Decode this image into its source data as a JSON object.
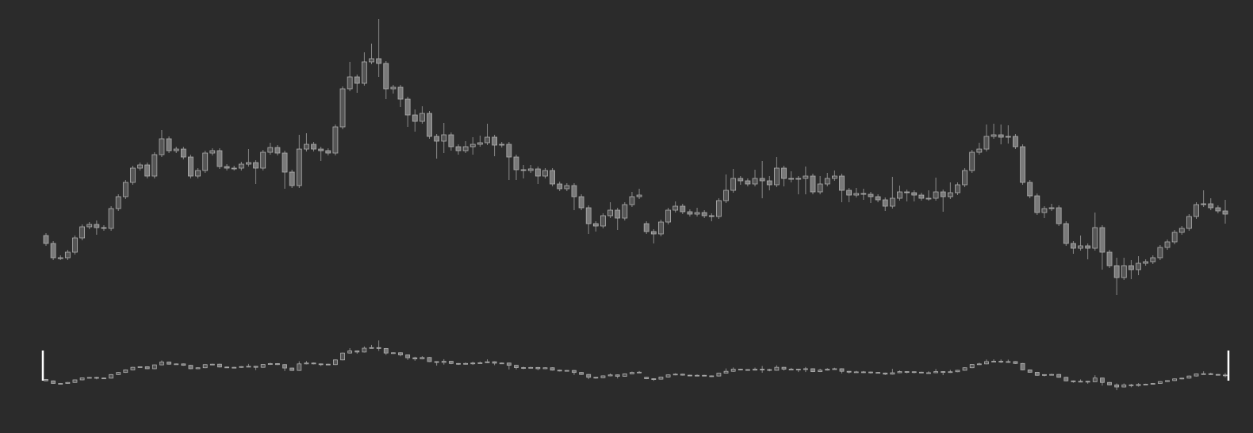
{
  "chart_data": {
    "type": "candlestick",
    "ylim": [
      0,
      400
    ],
    "up_color": "#555555",
    "down_color": "#7a7a7a",
    "wick_color": "#8a8a8a",
    "border_color": "#b0b0b0",
    "open": [
      103,
      93,
      75,
      75,
      82,
      100,
      114,
      117,
      113,
      112,
      137,
      152,
      170,
      188,
      192,
      178,
      205,
      225,
      210,
      212,
      202,
      178,
      185,
      207,
      210,
      190,
      188,
      188,
      193,
      195,
      188,
      208,
      214,
      207,
      183,
      166,
      212,
      218,
      212,
      210,
      207,
      240,
      288,
      303,
      295,
      322,
      326,
      320,
      288,
      290,
      275,
      255,
      247,
      257,
      228,
      222,
      230,
      215,
      210,
      215,
      218,
      220,
      227,
      217,
      218,
      202,
      186,
      185,
      187,
      178,
      185,
      168,
      162,
      166,
      152,
      138,
      118,
      115,
      128,
      135,
      125,
      142,
      152,
      118,
      108,
      105,
      120,
      135,
      140,
      133,
      130,
      132,
      128,
      127,
      147,
      160,
      175,
      172,
      168,
      175,
      172,
      167,
      188,
      175,
      175,
      175,
      178,
      158,
      168,
      175,
      178,
      160,
      154,
      156,
      155,
      152,
      148,
      140,
      150,
      158,
      157,
      154,
      150,
      150,
      158,
      152,
      157,
      167,
      185,
      208,
      212,
      228,
      230,
      227,
      228,
      215,
      170,
      153,
      132,
      137,
      138,
      118,
      93,
      87,
      90,
      87,
      113,
      82,
      65,
      50,
      65,
      60,
      68,
      70,
      75,
      88,
      95,
      107,
      112,
      127,
      142,
      143,
      138,
      134
    ],
    "high": [
      106,
      96,
      78,
      85,
      103,
      117,
      120,
      122,
      116,
      140,
      155,
      173,
      191,
      195,
      195,
      208,
      236,
      228,
      215,
      215,
      205,
      188,
      210,
      213,
      213,
      193,
      191,
      196,
      212,
      198,
      211,
      220,
      217,
      210,
      186,
      230,
      232,
      221,
      215,
      213,
      243,
      291,
      322,
      306,
      334,
      345,
      376,
      323,
      293,
      293,
      278,
      262,
      266,
      260,
      231,
      245,
      233,
      218,
      222,
      227,
      229,
      244,
      230,
      221,
      221,
      205,
      192,
      192,
      190,
      188,
      188,
      171,
      169,
      169,
      155,
      141,
      121,
      131,
      145,
      138,
      145,
      158,
      162,
      121,
      111,
      123,
      138,
      146,
      143,
      136,
      138,
      135,
      131,
      150,
      180,
      187,
      178,
      175,
      186,
      197,
      178,
      202,
      191,
      184,
      178,
      190,
      181,
      178,
      182,
      185,
      181,
      163,
      163,
      162,
      158,
      155,
      151,
      177,
      166,
      161,
      160,
      157,
      160,
      176,
      161,
      170,
      170,
      188,
      211,
      220,
      243,
      244,
      243,
      242,
      231,
      218,
      173,
      156,
      140,
      143,
      141,
      121,
      96,
      103,
      93,
      132,
      116,
      85,
      75,
      75,
      72,
      77,
      73,
      78,
      91,
      98,
      110,
      115,
      130,
      145,
      160,
      150,
      141,
      148
    ],
    "low": [
      90,
      72,
      72,
      72,
      79,
      97,
      111,
      104,
      109,
      109,
      134,
      149,
      167,
      185,
      175,
      175,
      202,
      207,
      207,
      199,
      175,
      175,
      182,
      204,
      187,
      185,
      185,
      185,
      190,
      168,
      185,
      205,
      204,
      162,
      163,
      163,
      209,
      209,
      197,
      204,
      204,
      237,
      285,
      283,
      292,
      319,
      303,
      275,
      282,
      265,
      240,
      234,
      244,
      225,
      200,
      207,
      210,
      205,
      207,
      205,
      215,
      217,
      203,
      214,
      173,
      173,
      175,
      182,
      168,
      175,
      165,
      159,
      159,
      135,
      135,
      105,
      108,
      112,
      125,
      110,
      122,
      139,
      149,
      105,
      93,
      102,
      117,
      132,
      130,
      127,
      127,
      125,
      121,
      124,
      144,
      157,
      167,
      165,
      165,
      150,
      160,
      164,
      165,
      170,
      155,
      155,
      155,
      155,
      165,
      172,
      145,
      145,
      151,
      148,
      144,
      145,
      134,
      137,
      147,
      146,
      146,
      147,
      147,
      147,
      133,
      149,
      154,
      164,
      182,
      205,
      209,
      225,
      218,
      219,
      212,
      167,
      150,
      129,
      125,
      134,
      115,
      90,
      80,
      84,
      73,
      84,
      60,
      62,
      28,
      47,
      48,
      53,
      65,
      67,
      72,
      85,
      92,
      104,
      109,
      124,
      139,
      135,
      131,
      118
    ],
    "close": [
      93,
      75,
      75,
      82,
      100,
      114,
      117,
      113,
      112,
      137,
      152,
      170,
      188,
      192,
      178,
      205,
      225,
      210,
      212,
      202,
      178,
      185,
      207,
      210,
      190,
      188,
      188,
      193,
      195,
      188,
      208,
      214,
      207,
      183,
      166,
      212,
      218,
      212,
      210,
      207,
      240,
      288,
      303,
      295,
      322,
      326,
      320,
      288,
      290,
      275,
      255,
      247,
      257,
      228,
      222,
      230,
      215,
      210,
      215,
      218,
      220,
      227,
      217,
      218,
      202,
      186,
      185,
      187,
      178,
      185,
      168,
      162,
      166,
      152,
      138,
      118,
      115,
      128,
      135,
      125,
      142,
      152,
      154,
      108,
      105,
      120,
      135,
      140,
      133,
      130,
      132,
      128,
      127,
      147,
      160,
      175,
      172,
      168,
      175,
      172,
      167,
      188,
      175,
      175,
      175,
      178,
      158,
      168,
      175,
      178,
      160,
      154,
      156,
      155,
      152,
      148,
      140,
      150,
      158,
      157,
      154,
      150,
      150,
      158,
      152,
      157,
      167,
      185,
      208,
      212,
      228,
      230,
      227,
      228,
      215,
      170,
      153,
      132,
      137,
      138,
      118,
      93,
      87,
      90,
      87,
      113,
      82,
      65,
      50,
      65,
      60,
      68,
      70,
      75,
      88,
      95,
      107,
      112,
      127,
      142,
      143,
      138,
      134,
      130
    ]
  }
}
